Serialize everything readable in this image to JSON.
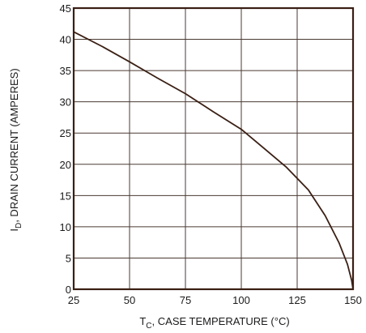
{
  "chart_data": {
    "type": "line",
    "title": "",
    "xlabel": {
      "main": "T",
      "sub": "C",
      "rest": ", CASE TEMPERATURE (°C)"
    },
    "ylabel": {
      "main": "I",
      "sub": "D",
      "rest": ", DRAIN CURRENT (AMPERES)"
    },
    "xlim": [
      25,
      150
    ],
    "ylim": [
      0,
      45
    ],
    "xticks": [
      25,
      50,
      75,
      100,
      125,
      150
    ],
    "yticks": [
      0,
      5,
      10,
      15,
      20,
      25,
      30,
      35,
      40,
      45
    ],
    "grid": true,
    "series": [
      {
        "x": [
          25,
          37.5,
          50,
          62.5,
          75,
          87.5,
          100,
          110,
          120,
          130,
          137.5,
          143.75,
          147.5,
          149.4,
          150
        ],
        "y": [
          41.2,
          38.9,
          36.4,
          33.8,
          31.3,
          28.4,
          25.6,
          22.6,
          19.6,
          15.9,
          11.8,
          7.4,
          4.0,
          1.4,
          0
        ],
        "color": "#3a1f14"
      }
    ],
    "colors": {
      "frame": "#3a1f14",
      "grid": "#4a3a33"
    }
  }
}
